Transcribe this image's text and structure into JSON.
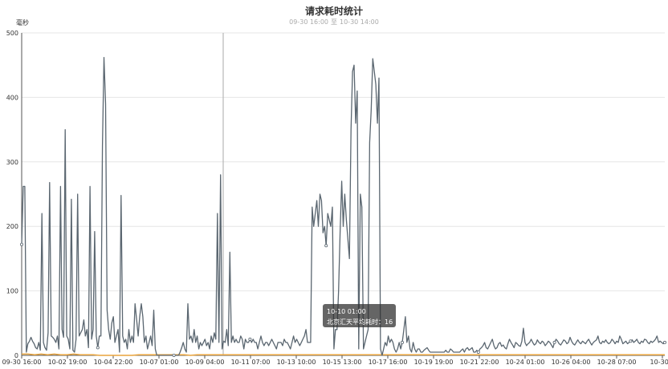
{
  "chart_data": {
    "type": "line",
    "title": "请求耗时统计",
    "subtitle": {
      "from": "09-30 16:00",
      "sep": "至",
      "to": "10-30 14:00"
    },
    "ylabel": "毫秒",
    "ylim": [
      0,
      500
    ],
    "yticks": [
      0,
      100,
      200,
      300,
      400,
      500
    ],
    "xticks": [
      "09-30 16:00",
      "10-02 19:00",
      "10-04 22:00",
      "10-07 01:00",
      "10-09 04:00",
      "10-11 07:00",
      "10-13 10:00",
      "10-15 13:00",
      "10-17 16:00",
      "10-19 19:00",
      "10-21 22:00",
      "10-24 01:00",
      "10-26 04:00",
      "10-28 07:00",
      "10-30 1"
    ],
    "grid": true,
    "colors": {
      "series": "#5a6670",
      "baseline": "#e8a33c",
      "grid": "#e6e6e6",
      "axis": "#555555",
      "tooltip_bg": "#323232"
    },
    "series": [
      {
        "name": "北京汇天平均耗时",
        "values": [
          172,
          262,
          262,
          5,
          18,
          22,
          28,
          22,
          18,
          12,
          10,
          20,
          8,
          220,
          20,
          12,
          8,
          35,
          268,
          30,
          28,
          25,
          20,
          30,
          10,
          262,
          40,
          28,
          350,
          30,
          25,
          10,
          242,
          8,
          5,
          25,
          250,
          30,
          35,
          40,
          55,
          30,
          40,
          12,
          262,
          25,
          40,
          192,
          30,
          12,
          30,
          30,
          325,
          462,
          390,
          70,
          40,
          25,
          50,
          60,
          20,
          30,
          40,
          5,
          248,
          30,
          20,
          25,
          10,
          40,
          20,
          30,
          20,
          80,
          55,
          30,
          60,
          80,
          60,
          20,
          30,
          10,
          20,
          30,
          15,
          70,
          10,
          0,
          0,
          0,
          0,
          0,
          0,
          0,
          0,
          0,
          0,
          0,
          0,
          0,
          0,
          0,
          5,
          12,
          20,
          10,
          5,
          80,
          25,
          30,
          20,
          40,
          20,
          30,
          10,
          20,
          15,
          20,
          25,
          15,
          20,
          10,
          30,
          20,
          35,
          25,
          220,
          20,
          280,
          10,
          22,
          20,
          40,
          15,
          160,
          20,
          30,
          20,
          25,
          20,
          20,
          30,
          25,
          10,
          25,
          20,
          20,
          25,
          20,
          25,
          20,
          20,
          10,
          20,
          30,
          20,
          15,
          20,
          20,
          15,
          20,
          25,
          20,
          15,
          10,
          20,
          20,
          20,
          15,
          25,
          20,
          20,
          15,
          10,
          20,
          30,
          20,
          25,
          20,
          15,
          20,
          25,
          30,
          40,
          20,
          20,
          20,
          230,
          200,
          220,
          240,
          200,
          250,
          240,
          190,
          200,
          170,
          220,
          210,
          200,
          230,
          10,
          40,
          40,
          100,
          190,
          270,
          200,
          250,
          210,
          180,
          150,
          350,
          440,
          450,
          360,
          410,
          10,
          250,
          230,
          10,
          20,
          30,
          40,
          330,
          380,
          460,
          440,
          420,
          360,
          430,
          10,
          0,
          10,
          20,
          15,
          30,
          20,
          25,
          20,
          10,
          5,
          10,
          20,
          10,
          20,
          40,
          60,
          20,
          30,
          10,
          5,
          20,
          10,
          5,
          10,
          10,
          5,
          5,
          8,
          10,
          12,
          8,
          5,
          5,
          5,
          5,
          5,
          5,
          5,
          5,
          5,
          5,
          8,
          5,
          5,
          10,
          8,
          5,
          5,
          5,
          5,
          5,
          8,
          10,
          5,
          10,
          12,
          8,
          10,
          12,
          5,
          5,
          8,
          5,
          10,
          12,
          15,
          20,
          12,
          10,
          15,
          20,
          25,
          15,
          10,
          12,
          18,
          20,
          14,
          16,
          12,
          10,
          18,
          25,
          20,
          16,
          12,
          20,
          18,
          15,
          14,
          22,
          42,
          20,
          15,
          18,
          20,
          25,
          20,
          16,
          18,
          24,
          20,
          18,
          22,
          20,
          15,
          18,
          22,
          20,
          16,
          12,
          20,
          25,
          22,
          18,
          16,
          20,
          24,
          22,
          18,
          20,
          28,
          22,
          18,
          16,
          20,
          24,
          20,
          18,
          22,
          20,
          18,
          22,
          25,
          20,
          16,
          20,
          22,
          24,
          30,
          20,
          18,
          22,
          20,
          24,
          20,
          18,
          20,
          25,
          22,
          18,
          22,
          20,
          30,
          25,
          18,
          20,
          22,
          18,
          20,
          22,
          24,
          20,
          22,
          25,
          20,
          18,
          22,
          20,
          25,
          24,
          20,
          18,
          22,
          20,
          22,
          25,
          30,
          20,
          22,
          20,
          18,
          20
        ]
      }
    ],
    "baseline_series": [
      2,
      2,
      1,
      2,
      1,
      2,
      1,
      1,
      2,
      1,
      1,
      1,
      0,
      0,
      0,
      0,
      0,
      0,
      1,
      1,
      1,
      1,
      1,
      1,
      1,
      1,
      0,
      1,
      1,
      1,
      1,
      1,
      1,
      1,
      1,
      1,
      1,
      1,
      1,
      1,
      1,
      1,
      1,
      1,
      1,
      1,
      1,
      1,
      1,
      1,
      1,
      1,
      1,
      1,
      1,
      1,
      1,
      1,
      1,
      1,
      1,
      1,
      1,
      1,
      1,
      1,
      1,
      1,
      1,
      1,
      1,
      1,
      1,
      1,
      1,
      1,
      1,
      1,
      1,
      1,
      1,
      1,
      1,
      1,
      1,
      1,
      1,
      1,
      1,
      1,
      1,
      1,
      1,
      1,
      1,
      1,
      1,
      1,
      1,
      1
    ],
    "tooltip": {
      "time": "10-10 01:00",
      "label": "北京汇天平均耗时",
      "value": "16"
    }
  }
}
